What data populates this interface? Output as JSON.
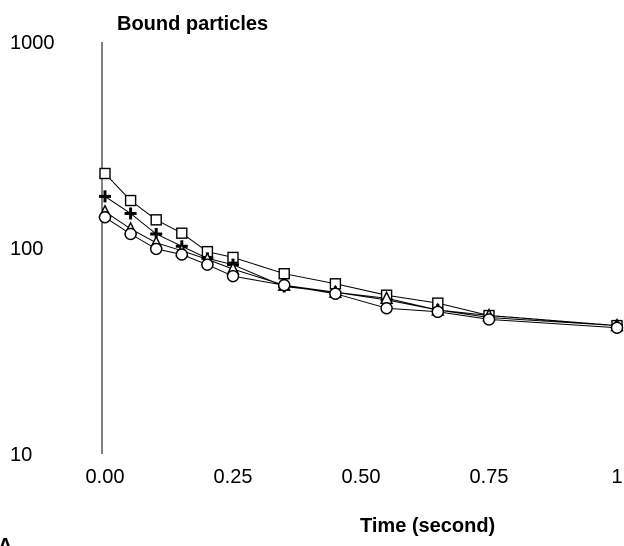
{
  "chart_data": {
    "type": "line",
    "title": "Bound particles",
    "xlabel": "Time (second)",
    "ylabel": "",
    "yscale": "log",
    "ylim": [
      10,
      1000
    ],
    "xlim": [
      0,
      1
    ],
    "yticks": [
      {
        "value": 1000,
        "label": "1000"
      },
      {
        "value": 100,
        "label": "100"
      },
      {
        "value": 10,
        "label": "10"
      }
    ],
    "xticks": [
      {
        "value": 0,
        "label": "0.00"
      },
      {
        "value": 0.25,
        "label": "0.25"
      },
      {
        "value": 0.5,
        "label": "0.50"
      },
      {
        "value": 0.75,
        "label": "0.75"
      },
      {
        "value": 1,
        "label": "1"
      }
    ],
    "grid": false,
    "legend": "none",
    "corner_label": "A",
    "series": [
      {
        "marker": "square",
        "x": [
          0,
          0.05,
          0.1,
          0.15,
          0.2,
          0.25,
          0.35,
          0.45,
          0.55,
          0.65,
          0.75,
          1.0
        ],
        "y": [
          230,
          170,
          137,
          118,
          96,
          90,
          75,
          67,
          59,
          54,
          47,
          42
        ]
      },
      {
        "marker": "plus",
        "x": [
          0,
          0.05,
          0.1,
          0.15,
          0.2,
          0.25,
          0.35,
          0.45,
          0.55,
          0.65,
          0.75,
          1.0
        ],
        "y": [
          178,
          147,
          117,
          102,
          89,
          83,
          65,
          61,
          56,
          50,
          46,
          42
        ]
      },
      {
        "marker": "triangle",
        "x": [
          0,
          0.05,
          0.1,
          0.15,
          0.2,
          0.25,
          0.35,
          0.45,
          0.55,
          0.65,
          0.75,
          1.0
        ],
        "y": [
          150,
          124,
          106,
          97,
          88,
          79,
          66,
          61,
          57,
          50,
          47,
          42
        ]
      },
      {
        "marker": "circle",
        "x": [
          0,
          0.05,
          0.1,
          0.15,
          0.2,
          0.25,
          0.35,
          0.45,
          0.55,
          0.65,
          0.75,
          1.0
        ],
        "y": [
          141,
          117,
          99,
          93,
          83,
          73,
          66,
          60,
          51,
          49,
          45,
          41
        ]
      }
    ]
  }
}
